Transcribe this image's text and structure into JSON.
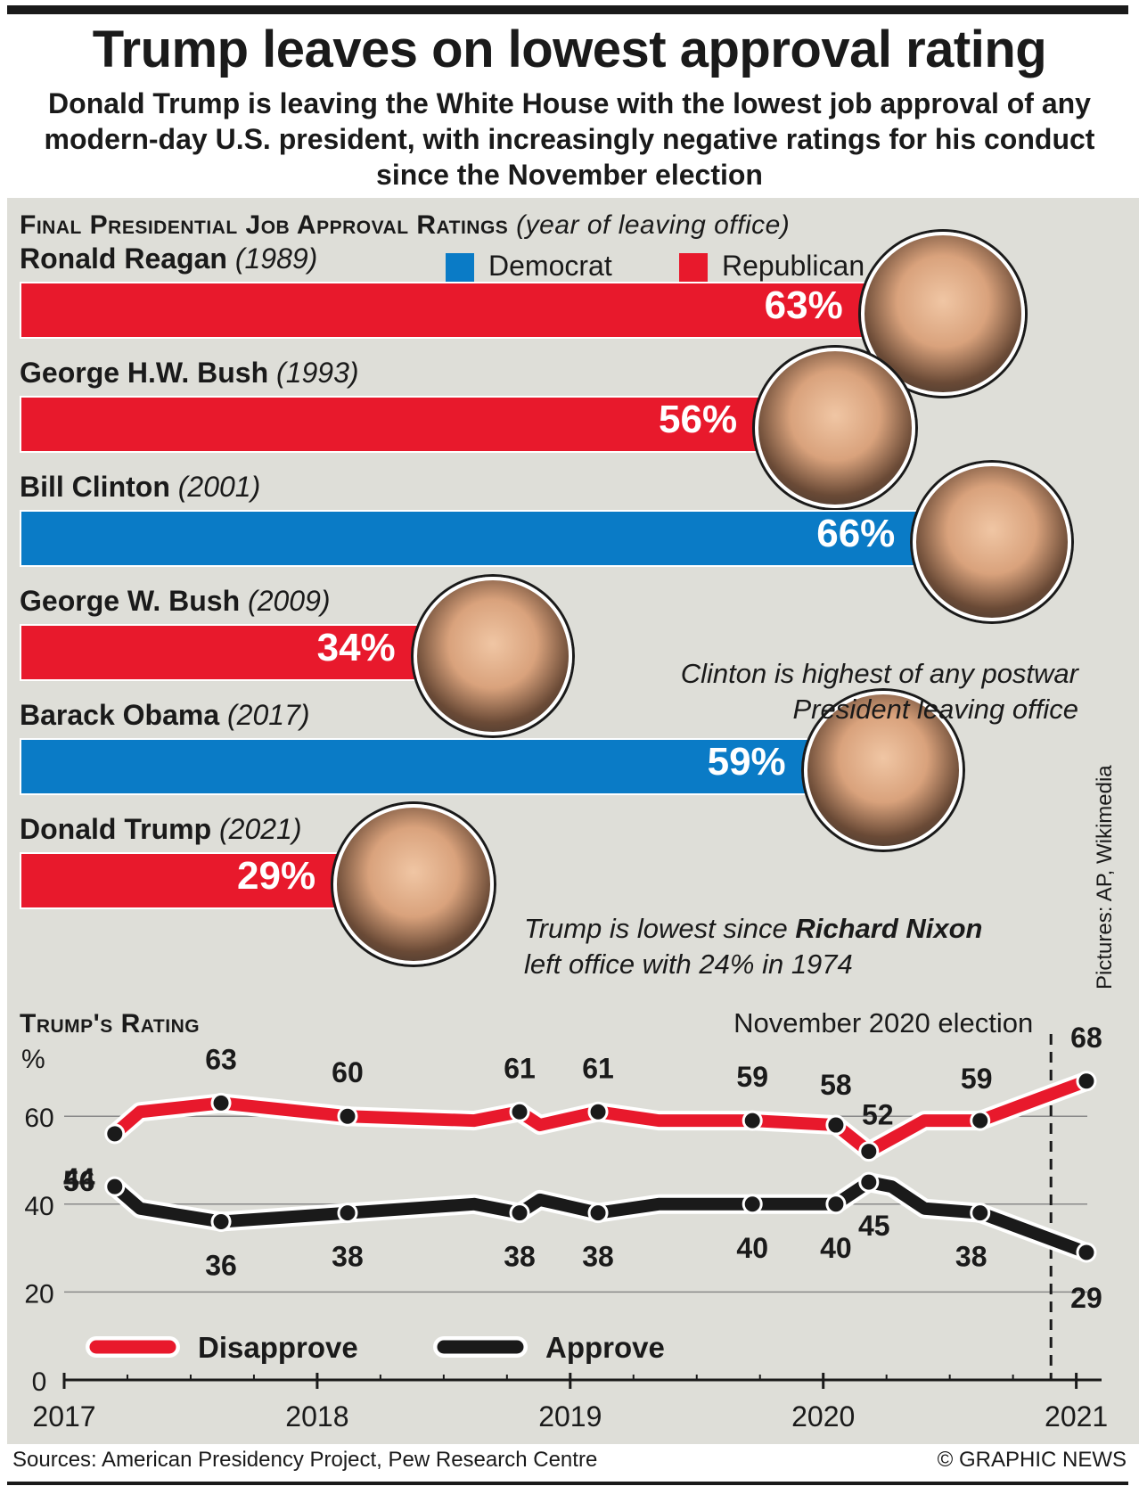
{
  "title": "Trump leaves on lowest approval rating",
  "subtitle": "Donald Trump is leaving the White House with the lowest job approval of any modern-day U.S. president, with increasingly negative ratings for his conduct since the November election",
  "colors": {
    "democrat": "#0a7bc6",
    "republican": "#e8192c",
    "panel": "#deded8",
    "approve_line": "#1a1a1a"
  },
  "section_final": {
    "label": "Final Presidential Job Approval Ratings",
    "note": "(year of leaving office)"
  },
  "legend": {
    "democrat": "Democrat",
    "republican": "Republican"
  },
  "presidents": [
    {
      "name": "Ronald Reagan",
      "year": "(1989)",
      "value": 63,
      "label": "63%",
      "party": "republican",
      "icon": "reagan-portrait"
    },
    {
      "name": "George H.W. Bush",
      "year": "(1993)",
      "value": 56,
      "label": "56%",
      "party": "republican",
      "icon": "hw-bush-portrait"
    },
    {
      "name": "Bill Clinton",
      "year": "(2001)",
      "value": 66,
      "label": "66%",
      "party": "democrat",
      "icon": "clinton-portrait"
    },
    {
      "name": "George W. Bush",
      "year": "(2009)",
      "value": 34,
      "label": "34%",
      "party": "republican",
      "icon": "w-bush-portrait"
    },
    {
      "name": "Barack Obama",
      "year": "(2017)",
      "value": 59,
      "label": "59%",
      "party": "democrat",
      "icon": "obama-portrait"
    },
    {
      "name": "Donald Trump",
      "year": "(2021)",
      "value": 29,
      "label": "29%",
      "party": "republican",
      "icon": "trump-portrait"
    }
  ],
  "callouts": {
    "clinton_line1": "Clinton is highest of any postwar",
    "clinton_line2": "President leaving office",
    "trump_line1_pre": "Trump is lowest since ",
    "trump_line1_bold": "Richard Nixon",
    "trump_line2": "left office with 24% in 1974"
  },
  "credit": "Pictures: AP, Wikimedia",
  "section_trump": {
    "label": "Trump's Rating"
  },
  "chart_data": [
    {
      "type": "bar",
      "title": "Final Presidential Job Approval Ratings",
      "categories": [
        "Ronald Reagan (1989)",
        "George H.W. Bush (1993)",
        "Bill Clinton (2001)",
        "George W. Bush (2009)",
        "Barack Obama (2017)",
        "Donald Trump (2021)"
      ],
      "values": [
        63,
        56,
        66,
        34,
        59,
        29
      ],
      "unit": "%"
    },
    {
      "type": "line",
      "title": "Trump's Rating",
      "ylabel": "%",
      "ylim": [
        0,
        75
      ],
      "yticks": [
        0,
        20,
        40,
        60
      ],
      "xlim": [
        2017.0,
        2021.1
      ],
      "xticks": [
        "2017",
        "2018",
        "2019",
        "2020",
        "2021"
      ],
      "grid": true,
      "legend_position": "bottom-left",
      "annotation": "November 2020 election",
      "annotation_x": 2020.9,
      "series": [
        {
          "name": "Disapprove",
          "x": [
            2017.2,
            2017.3,
            2017.62,
            2018.12,
            2018.62,
            2018.8,
            2018.88,
            2019.11,
            2019.35,
            2019.72,
            2020.05,
            2020.18,
            2020.4,
            2020.62,
            2021.04
          ],
          "y": [
            56,
            61,
            63,
            60,
            59,
            61,
            58,
            61,
            59,
            59,
            58,
            52,
            59,
            59,
            68
          ],
          "labels": [
            "56",
            "",
            "63",
            "60",
            "",
            "61",
            "",
            "61",
            "",
            "59",
            "58",
            "52",
            "",
            "59",
            "68"
          ]
        },
        {
          "name": "Approve",
          "x": [
            2017.2,
            2017.3,
            2017.62,
            2018.12,
            2018.62,
            2018.8,
            2018.88,
            2019.11,
            2019.35,
            2019.72,
            2020.05,
            2020.18,
            2020.27,
            2020.4,
            2020.62,
            2021.04
          ],
          "y": [
            44,
            39,
            36,
            38,
            40,
            38,
            41,
            38,
            40,
            40,
            40,
            45,
            44,
            39,
            38,
            29
          ],
          "labels": [
            "44",
            "",
            "36",
            "38",
            "",
            "38",
            "",
            "38",
            "",
            "40",
            "40",
            "45",
            "",
            "",
            "38",
            "29"
          ]
        }
      ]
    }
  ],
  "footer": {
    "sources": "Sources: American Presidency Project, Pew Research Centre",
    "copyright": "© GRAPHIC NEWS"
  }
}
